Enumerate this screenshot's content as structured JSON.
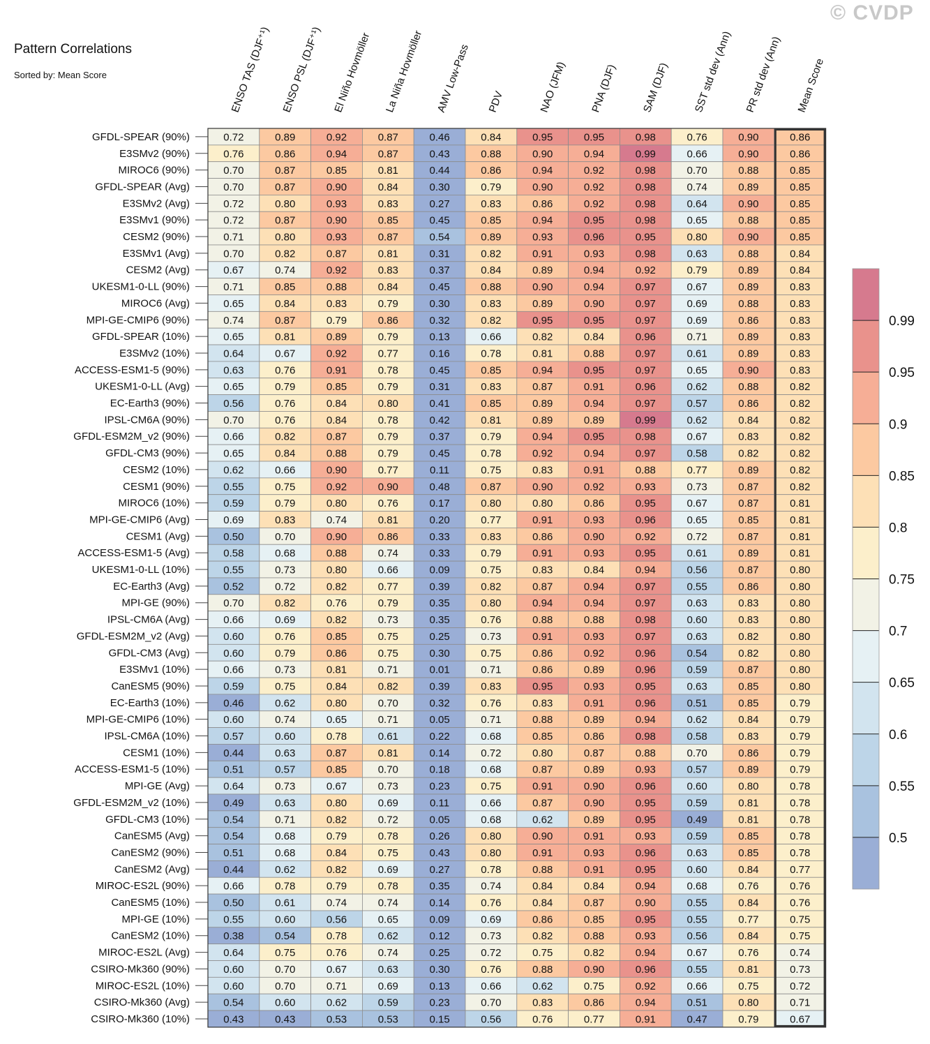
{
  "watermark": "© CVDP",
  "title": "Pattern Correlations",
  "subtitle": "Sorted by: Mean Score",
  "chart_data": {
    "type": "heatmap",
    "columns": [
      "ENSO TAS (DJF⁺¹)",
      "ENSO PSL (DJF⁺¹)",
      "El Niño Hovmöller",
      "La Niña Hovmöller",
      "AMV Low-Pass",
      "PDV",
      "NAO (JFM)",
      "PNA (DJF)",
      "SAM (DJF)",
      "SST std dev (Ann)",
      "PR std dev (Ann)",
      "Mean Score"
    ],
    "rows": [
      "GFDL-SPEAR (90%)",
      "E3SMv2 (90%)",
      "MIROC6 (90%)",
      "GFDL-SPEAR (Avg)",
      "E3SMv2 (Avg)",
      "E3SMv1 (90%)",
      "CESM2 (90%)",
      "E3SMv1 (Avg)",
      "CESM2 (Avg)",
      "UKESM1-0-LL (90%)",
      "MIROC6 (Avg)",
      "MPI-GE-CMIP6 (90%)",
      "GFDL-SPEAR (10%)",
      "E3SMv2 (10%)",
      "ACCESS-ESM1-5 (90%)",
      "UKESM1-0-LL (Avg)",
      "EC-Earth3 (90%)",
      "IPSL-CM6A (90%)",
      "GFDL-ESM2M_v2 (90%)",
      "GFDL-CM3 (90%)",
      "CESM2 (10%)",
      "CESM1 (90%)",
      "MIROC6 (10%)",
      "MPI-GE-CMIP6 (Avg)",
      "CESM1 (Avg)",
      "ACCESS-ESM1-5 (Avg)",
      "UKESM1-0-LL (10%)",
      "EC-Earth3 (Avg)",
      "MPI-GE (90%)",
      "IPSL-CM6A (Avg)",
      "GFDL-ESM2M_v2 (Avg)",
      "GFDL-CM3 (Avg)",
      "E3SMv1 (10%)",
      "CanESM5 (90%)",
      "EC-Earth3 (10%)",
      "MPI-GE-CMIP6 (10%)",
      "IPSL-CM6A (10%)",
      "CESM1 (10%)",
      "ACCESS-ESM1-5 (10%)",
      "MPI-GE (Avg)",
      "GFDL-ESM2M_v2 (10%)",
      "GFDL-CM3 (10%)",
      "CanESM5 (Avg)",
      "CanESM2 (90%)",
      "CanESM2 (Avg)",
      "MIROC-ES2L (90%)",
      "CanESM5 (10%)",
      "MPI-GE (10%)",
      "CanESM2 (10%)",
      "MIROC-ES2L (Avg)",
      "CSIRO-Mk360 (90%)",
      "MIROC-ES2L (10%)",
      "CSIRO-Mk360 (Avg)",
      "CSIRO-Mk360 (10%)"
    ],
    "values": [
      [
        "0.72",
        "0.89",
        "0.92",
        "0.87",
        "0.46",
        "0.84",
        "0.95",
        "0.95",
        "0.98",
        "0.76",
        "0.90",
        "0.86"
      ],
      [
        "0.76",
        "0.86",
        "0.94",
        "0.87",
        "0.43",
        "0.88",
        "0.90",
        "0.94",
        "0.99",
        "0.66",
        "0.90",
        "0.86"
      ],
      [
        "0.70",
        "0.87",
        "0.85",
        "0.81",
        "0.44",
        "0.86",
        "0.94",
        "0.92",
        "0.98",
        "0.70",
        "0.88",
        "0.85"
      ],
      [
        "0.70",
        "0.87",
        "0.90",
        "0.84",
        "0.30",
        "0.79",
        "0.90",
        "0.92",
        "0.98",
        "0.74",
        "0.89",
        "0.85"
      ],
      [
        "0.72",
        "0.80",
        "0.93",
        "0.83",
        "0.27",
        "0.83",
        "0.86",
        "0.92",
        "0.98",
        "0.64",
        "0.90",
        "0.85"
      ],
      [
        "0.72",
        "0.87",
        "0.90",
        "0.85",
        "0.45",
        "0.85",
        "0.94",
        "0.95",
        "0.98",
        "0.65",
        "0.88",
        "0.85"
      ],
      [
        "0.71",
        "0.80",
        "0.93",
        "0.87",
        "0.54",
        "0.89",
        "0.93",
        "0.96",
        "0.95",
        "0.80",
        "0.90",
        "0.85"
      ],
      [
        "0.70",
        "0.82",
        "0.87",
        "0.81",
        "0.31",
        "0.82",
        "0.91",
        "0.93",
        "0.98",
        "0.63",
        "0.88",
        "0.84"
      ],
      [
        "0.67",
        "0.74",
        "0.92",
        "0.83",
        "0.37",
        "0.84",
        "0.89",
        "0.94",
        "0.92",
        "0.79",
        "0.89",
        "0.84"
      ],
      [
        "0.71",
        "0.85",
        "0.88",
        "0.84",
        "0.45",
        "0.88",
        "0.90",
        "0.94",
        "0.97",
        "0.67",
        "0.89",
        "0.83"
      ],
      [
        "0.65",
        "0.84",
        "0.83",
        "0.79",
        "0.30",
        "0.83",
        "0.89",
        "0.90",
        "0.97",
        "0.69",
        "0.88",
        "0.83"
      ],
      [
        "0.74",
        "0.87",
        "0.79",
        "0.86",
        "0.32",
        "0.82",
        "0.95",
        "0.95",
        "0.97",
        "0.69",
        "0.86",
        "0.83"
      ],
      [
        "0.65",
        "0.81",
        "0.89",
        "0.79",
        "0.13",
        "0.66",
        "0.82",
        "0.84",
        "0.96",
        "0.71",
        "0.89",
        "0.83"
      ],
      [
        "0.64",
        "0.67",
        "0.92",
        "0.77",
        "0.16",
        "0.78",
        "0.81",
        "0.88",
        "0.97",
        "0.61",
        "0.89",
        "0.83"
      ],
      [
        "0.63",
        "0.76",
        "0.91",
        "0.78",
        "0.45",
        "0.85",
        "0.94",
        "0.95",
        "0.97",
        "0.65",
        "0.90",
        "0.83"
      ],
      [
        "0.65",
        "0.79",
        "0.85",
        "0.79",
        "0.31",
        "0.83",
        "0.87",
        "0.91",
        "0.96",
        "0.62",
        "0.88",
        "0.82"
      ],
      [
        "0.56",
        "0.76",
        "0.84",
        "0.80",
        "0.41",
        "0.85",
        "0.89",
        "0.94",
        "0.97",
        "0.57",
        "0.86",
        "0.82"
      ],
      [
        "0.70",
        "0.76",
        "0.84",
        "0.78",
        "0.42",
        "0.81",
        "0.89",
        "0.89",
        "0.99",
        "0.62",
        "0.84",
        "0.82"
      ],
      [
        "0.66",
        "0.82",
        "0.87",
        "0.79",
        "0.37",
        "0.79",
        "0.94",
        "0.95",
        "0.98",
        "0.67",
        "0.83",
        "0.82"
      ],
      [
        "0.65",
        "0.84",
        "0.88",
        "0.79",
        "0.45",
        "0.78",
        "0.92",
        "0.94",
        "0.97",
        "0.58",
        "0.82",
        "0.82"
      ],
      [
        "0.62",
        "0.66",
        "0.90",
        "0.77",
        "0.11",
        "0.75",
        "0.83",
        "0.91",
        "0.88",
        "0.77",
        "0.89",
        "0.82"
      ],
      [
        "0.55",
        "0.75",
        "0.92",
        "0.90",
        "0.48",
        "0.87",
        "0.90",
        "0.92",
        "0.93",
        "0.73",
        "0.87",
        "0.82"
      ],
      [
        "0.59",
        "0.79",
        "0.80",
        "0.76",
        "0.17",
        "0.80",
        "0.80",
        "0.86",
        "0.95",
        "0.67",
        "0.87",
        "0.81"
      ],
      [
        "0.69",
        "0.83",
        "0.74",
        "0.81",
        "0.20",
        "0.77",
        "0.91",
        "0.93",
        "0.96",
        "0.65",
        "0.85",
        "0.81"
      ],
      [
        "0.50",
        "0.70",
        "0.90",
        "0.86",
        "0.33",
        "0.83",
        "0.86",
        "0.90",
        "0.92",
        "0.72",
        "0.87",
        "0.81"
      ],
      [
        "0.58",
        "0.68",
        "0.88",
        "0.74",
        "0.33",
        "0.79",
        "0.91",
        "0.93",
        "0.95",
        "0.61",
        "0.89",
        "0.81"
      ],
      [
        "0.55",
        "0.73",
        "0.80",
        "0.66",
        "0.09",
        "0.75",
        "0.83",
        "0.84",
        "0.94",
        "0.56",
        "0.87",
        "0.80"
      ],
      [
        "0.52",
        "0.72",
        "0.82",
        "0.77",
        "0.39",
        "0.82",
        "0.87",
        "0.94",
        "0.97",
        "0.55",
        "0.86",
        "0.80"
      ],
      [
        "0.70",
        "0.82",
        "0.76",
        "0.79",
        "0.35",
        "0.80",
        "0.94",
        "0.94",
        "0.97",
        "0.63",
        "0.83",
        "0.80"
      ],
      [
        "0.66",
        "0.69",
        "0.82",
        "0.73",
        "0.35",
        "0.76",
        "0.88",
        "0.88",
        "0.98",
        "0.60",
        "0.83",
        "0.80"
      ],
      [
        "0.60",
        "0.76",
        "0.85",
        "0.75",
        "0.25",
        "0.73",
        "0.91",
        "0.93",
        "0.97",
        "0.63",
        "0.82",
        "0.80"
      ],
      [
        "0.60",
        "0.79",
        "0.86",
        "0.75",
        "0.30",
        "0.75",
        "0.86",
        "0.92",
        "0.96",
        "0.54",
        "0.82",
        "0.80"
      ],
      [
        "0.66",
        "0.73",
        "0.81",
        "0.71",
        "0.01",
        "0.71",
        "0.86",
        "0.89",
        "0.96",
        "0.59",
        "0.87",
        "0.80"
      ],
      [
        "0.59",
        "0.75",
        "0.84",
        "0.82",
        "0.39",
        "0.83",
        "0.95",
        "0.93",
        "0.95",
        "0.63",
        "0.85",
        "0.80"
      ],
      [
        "0.46",
        "0.62",
        "0.80",
        "0.70",
        "0.32",
        "0.76",
        "0.83",
        "0.91",
        "0.96",
        "0.51",
        "0.85",
        "0.79"
      ],
      [
        "0.60",
        "0.74",
        "0.65",
        "0.71",
        "0.05",
        "0.71",
        "0.88",
        "0.89",
        "0.94",
        "0.62",
        "0.84",
        "0.79"
      ],
      [
        "0.57",
        "0.60",
        "0.78",
        "0.61",
        "0.22",
        "0.68",
        "0.85",
        "0.86",
        "0.98",
        "0.58",
        "0.83",
        "0.79"
      ],
      [
        "0.44",
        "0.63",
        "0.87",
        "0.81",
        "0.14",
        "0.72",
        "0.80",
        "0.87",
        "0.88",
        "0.70",
        "0.86",
        "0.79"
      ],
      [
        "0.51",
        "0.57",
        "0.85",
        "0.70",
        "0.18",
        "0.68",
        "0.87",
        "0.89",
        "0.93",
        "0.57",
        "0.89",
        "0.79"
      ],
      [
        "0.64",
        "0.73",
        "0.67",
        "0.73",
        "0.23",
        "0.75",
        "0.91",
        "0.90",
        "0.96",
        "0.60",
        "0.80",
        "0.78"
      ],
      [
        "0.49",
        "0.63",
        "0.80",
        "0.69",
        "0.11",
        "0.66",
        "0.87",
        "0.90",
        "0.95",
        "0.59",
        "0.81",
        "0.78"
      ],
      [
        "0.54",
        "0.71",
        "0.82",
        "0.72",
        "0.05",
        "0.68",
        "0.62",
        "0.89",
        "0.95",
        "0.49",
        "0.81",
        "0.78"
      ],
      [
        "0.54",
        "0.68",
        "0.79",
        "0.78",
        "0.26",
        "0.80",
        "0.90",
        "0.91",
        "0.93",
        "0.59",
        "0.85",
        "0.78"
      ],
      [
        "0.51",
        "0.68",
        "0.84",
        "0.75",
        "0.43",
        "0.80",
        "0.91",
        "0.93",
        "0.96",
        "0.63",
        "0.85",
        "0.78"
      ],
      [
        "0.44",
        "0.62",
        "0.82",
        "0.69",
        "0.27",
        "0.78",
        "0.88",
        "0.91",
        "0.95",
        "0.60",
        "0.84",
        "0.77"
      ],
      [
        "0.66",
        "0.78",
        "0.79",
        "0.78",
        "0.35",
        "0.74",
        "0.84",
        "0.84",
        "0.94",
        "0.68",
        "0.76",
        "0.76"
      ],
      [
        "0.50",
        "0.61",
        "0.74",
        "0.74",
        "0.14",
        "0.76",
        "0.84",
        "0.87",
        "0.90",
        "0.55",
        "0.84",
        "0.76"
      ],
      [
        "0.55",
        "0.60",
        "0.56",
        "0.65",
        "0.09",
        "0.69",
        "0.86",
        "0.85",
        "0.95",
        "0.55",
        "0.77",
        "0.75"
      ],
      [
        "0.38",
        "0.54",
        "0.78",
        "0.62",
        "0.12",
        "0.73",
        "0.82",
        "0.88",
        "0.93",
        "0.56",
        "0.84",
        "0.75"
      ],
      [
        "0.64",
        "0.75",
        "0.76",
        "0.74",
        "0.25",
        "0.72",
        "0.75",
        "0.82",
        "0.94",
        "0.67",
        "0.76",
        "0.74"
      ],
      [
        "0.60",
        "0.70",
        "0.67",
        "0.63",
        "0.30",
        "0.76",
        "0.88",
        "0.90",
        "0.96",
        "0.55",
        "0.81",
        "0.73"
      ],
      [
        "0.60",
        "0.70",
        "0.71",
        "0.69",
        "0.13",
        "0.66",
        "0.62",
        "0.75",
        "0.92",
        "0.66",
        "0.75",
        "0.72"
      ],
      [
        "0.54",
        "0.60",
        "0.62",
        "0.59",
        "0.23",
        "0.70",
        "0.83",
        "0.86",
        "0.94",
        "0.51",
        "0.80",
        "0.71"
      ],
      [
        "0.43",
        "0.43",
        "0.53",
        "0.53",
        "0.15",
        "0.56",
        "0.76",
        "0.77",
        "0.91",
        "0.47",
        "0.79",
        "0.67"
      ]
    ],
    "highlighted_column": "Mean Score",
    "colorbar": {
      "levels": [
        0.5,
        0.55,
        0.6,
        0.65,
        0.7,
        0.75,
        0.8,
        0.85,
        0.9,
        0.95,
        0.99
      ],
      "labels": [
        "0.5",
        "0.55",
        "0.6",
        "0.65",
        "0.7",
        "0.75",
        "0.8",
        "0.85",
        "0.9",
        "0.95",
        "0.99"
      ],
      "colors": [
        "#9aaed6",
        "#a9c2df",
        "#bdd5e8",
        "#d2e4ef",
        "#e6f1f4",
        "#f2f2e6",
        "#fcefcb",
        "#fde0b6",
        "#fcc9a1",
        "#f6ae96",
        "#e9928c",
        "#d67a8e"
      ]
    }
  }
}
